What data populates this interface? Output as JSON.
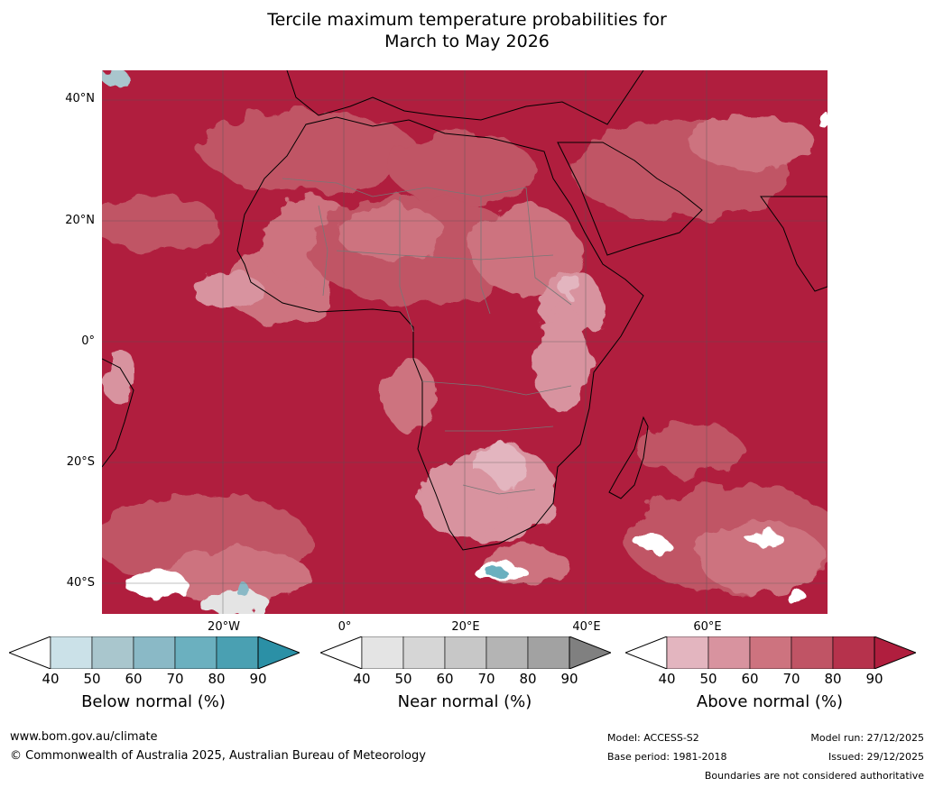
{
  "title_line1": "Tercile maximum temperature probabilities for",
  "title_line2": "March to May 2026",
  "map": {
    "lat_labels": [
      "40°N",
      "20°N",
      "0°",
      "20°S",
      "40°S"
    ],
    "lon_labels": [
      "20°W",
      "0°",
      "20°E",
      "40°E",
      "60°E"
    ]
  },
  "legends": [
    {
      "label": "Below normal (%)",
      "ticks": [
        "40",
        "50",
        "60",
        "70",
        "80",
        "90"
      ],
      "colors": [
        "#ffffff",
        "#cbe1e8",
        "#a9c6cd",
        "#8ab9c6",
        "#6bb0bf",
        "#4aa0b2",
        "#2b90a6"
      ]
    },
    {
      "label": "Near normal (%)",
      "ticks": [
        "40",
        "50",
        "60",
        "70",
        "80",
        "90"
      ],
      "colors": [
        "#ffffff",
        "#e4e4e4",
        "#d6d6d6",
        "#c7c7c7",
        "#b4b4b4",
        "#a2a2a2",
        "#808080"
      ]
    },
    {
      "label": "Above normal (%)",
      "ticks": [
        "40",
        "50",
        "60",
        "70",
        "80",
        "90"
      ],
      "colors": [
        "#ffffff",
        "#e3b5bf",
        "#d8939f",
        "#cd737f",
        "#c05465",
        "#b6324c",
        "#b01e3e"
      ]
    }
  ],
  "footer": {
    "url": "www.bom.gov.au/climate",
    "copyright": "© Commonwealth of Australia 2025, Australian Bureau of Meteorology",
    "model": "Model: ACCESS-S2",
    "base_period": "Base period: 1981-2018",
    "model_run": "Model run: 27/12/2025",
    "issued": "Issued: 29/12/2025",
    "disclaimer": "Boundaries are not considered authoritative"
  }
}
